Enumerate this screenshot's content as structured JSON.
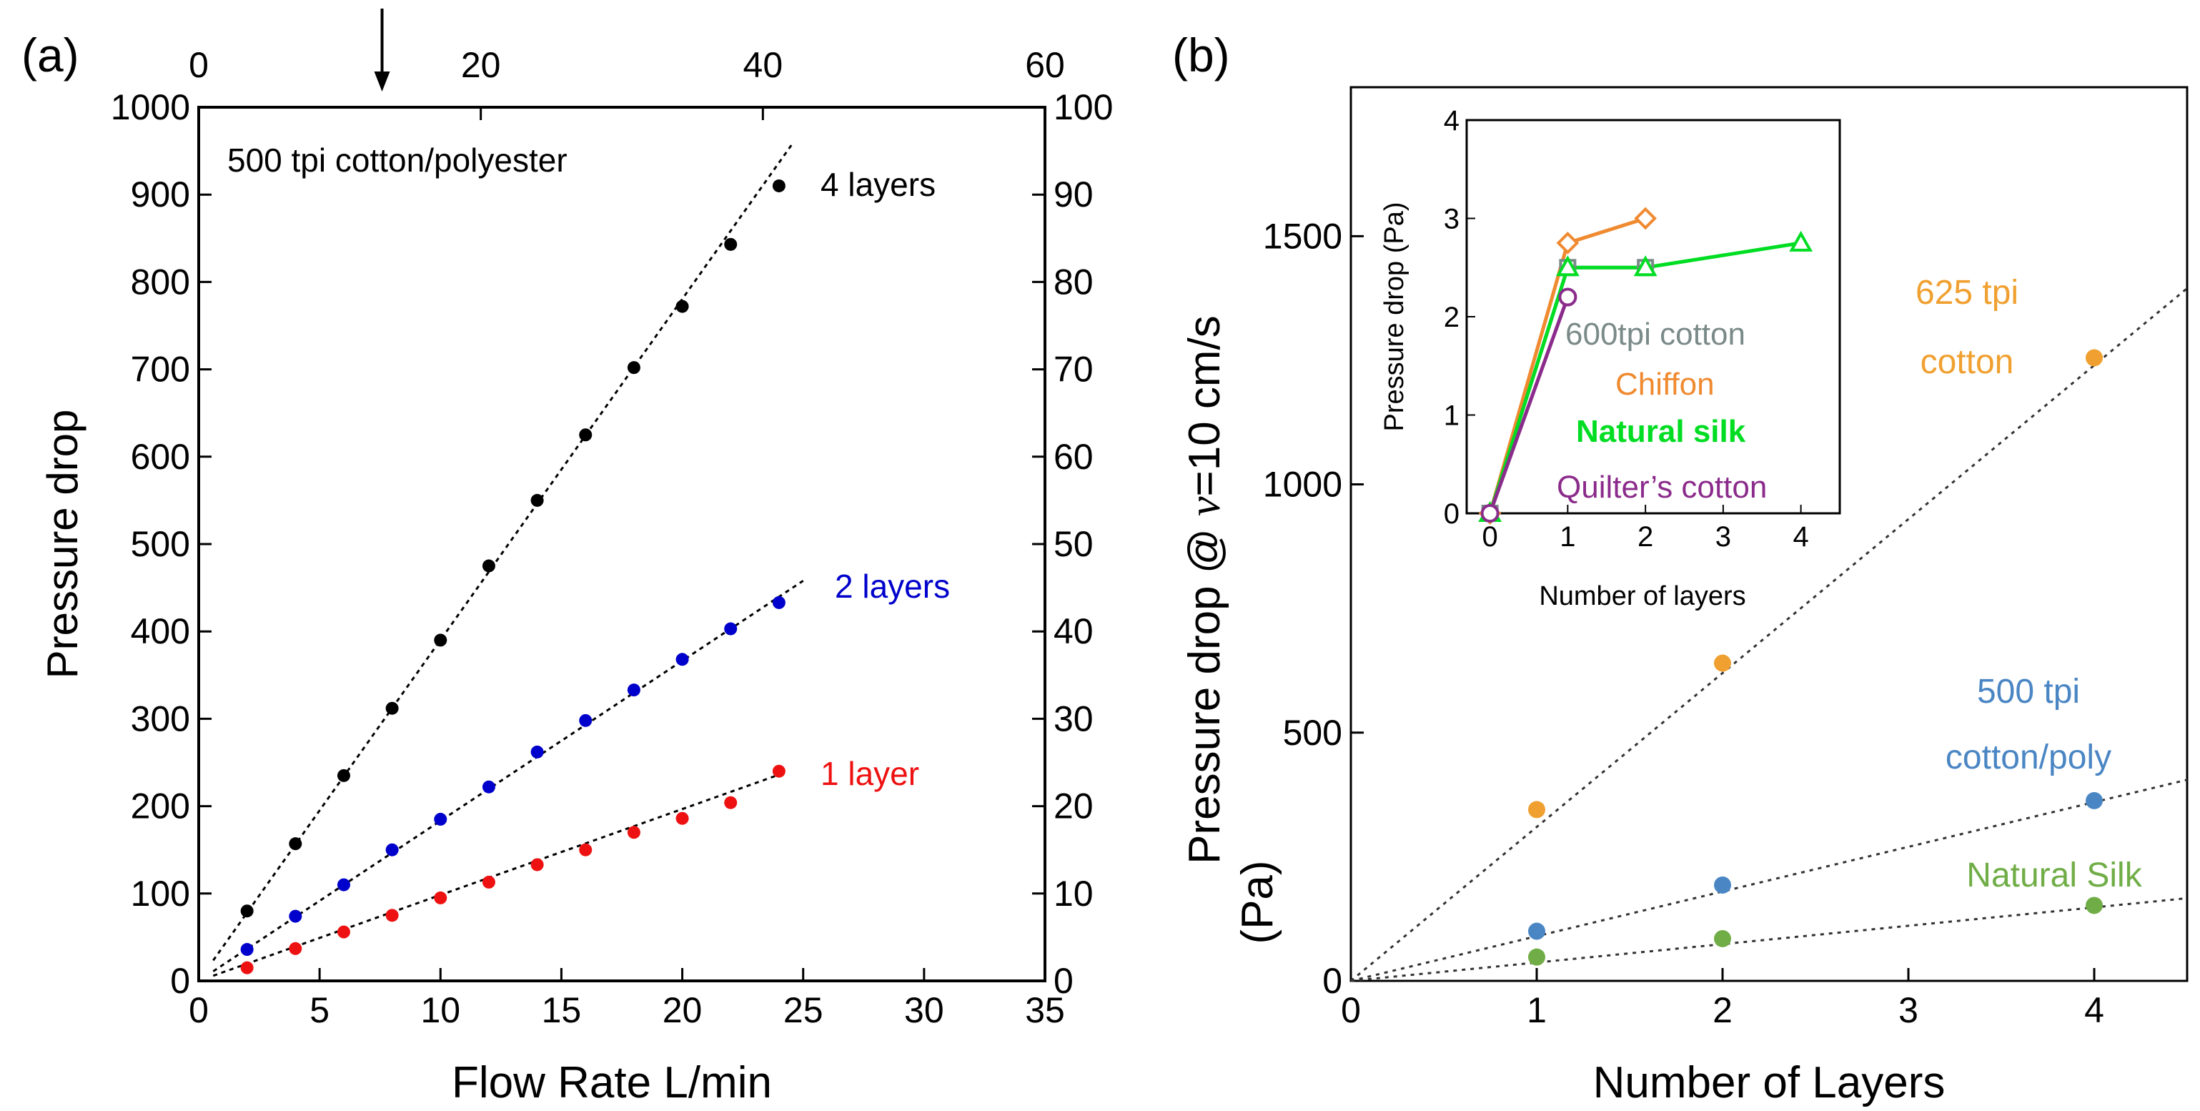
{
  "chart_data": [
    {
      "panel_label": "(a)",
      "type": "scatter",
      "title": "500 tpi cotton/polyester",
      "xlabel": "Flow Rate L/min",
      "ylabel": "Pressure drop",
      "xlim": [
        0,
        35
      ],
      "ylim": [
        0,
        1000
      ],
      "xticks": [
        "0",
        "5",
        "10",
        "15",
        "20",
        "25",
        "30",
        "35"
      ],
      "yticks": [
        "0",
        "100",
        "200",
        "300",
        "400",
        "500",
        "600",
        "700",
        "800",
        "900",
        "1000"
      ],
      "top_axis": {
        "lim": [
          0,
          60
        ],
        "ticks": [
          "0",
          "20",
          "40",
          "60"
        ]
      },
      "right_axis": {
        "lim": [
          0,
          100
        ],
        "ticks": [
          "0",
          "10",
          "20",
          "30",
          "40",
          "50",
          "60",
          "70",
          "80",
          "90",
          "100"
        ]
      },
      "arrow_marker_top_axis": 13,
      "series": [
        {
          "name": "4 layers",
          "color": "#000000",
          "x": [
            2,
            4,
            6,
            8,
            10,
            12,
            14,
            16,
            18,
            20,
            22,
            24
          ],
          "y": [
            80,
            157,
            235,
            312,
            390,
            475,
            550,
            625,
            702,
            772,
            843,
            910
          ],
          "fit_end": [
            24.6,
            960
          ]
        },
        {
          "name": "2 layers",
          "color": "#0000cc",
          "x": [
            2,
            4,
            6,
            8,
            10,
            12,
            14,
            16,
            18,
            20,
            22,
            24
          ],
          "y": [
            36,
            74,
            110,
            150,
            185,
            222,
            262,
            298,
            333,
            368,
            403,
            433
          ],
          "fit_end": [
            25,
            458
          ]
        },
        {
          "name": "1 layer",
          "color": "#ee1111",
          "x": [
            2,
            4,
            6,
            8,
            10,
            12,
            14,
            16,
            18,
            20,
            22,
            24
          ],
          "y": [
            15,
            37,
            56,
            75,
            95,
            113,
            133,
            150,
            170,
            186,
            204,
            240
          ],
          "fit_end": [
            24,
            236
          ]
        }
      ]
    },
    {
      "panel_label": "(b)",
      "type": "scatter",
      "xlabel": "Number of Layers",
      "ylabel_main": "Pressure drop @ ",
      "ylabel_symbol": "v",
      "ylabel_tail": "=10 cm/s",
      "ylabel_units": "(Pa)",
      "xlim": [
        0,
        4.5
      ],
      "ylim": [
        0,
        1800
      ],
      "xticks": [
        "0",
        "1",
        "2",
        "3",
        "4"
      ],
      "yticks": [
        "0",
        "500",
        "1000",
        "1500"
      ],
      "series": [
        {
          "name": "625 tpi cotton",
          "label_line1": "625 tpi",
          "label_line2": "cotton",
          "color": "#f0a030",
          "x": [
            1,
            2,
            4
          ],
          "y": [
            345,
            640,
            1255
          ],
          "fit_slope": 310
        },
        {
          "name": "500 tpi cotton/poly",
          "label_line1": "500 tpi",
          "label_line2": "cotton/poly",
          "color": "#4a86c4",
          "x": [
            1,
            2,
            4
          ],
          "y": [
            100,
            193,
            363
          ],
          "fit_slope": 90
        },
        {
          "name": "Natural Silk",
          "label_line1": "Natural Silk",
          "color": "#70ad47",
          "x": [
            1,
            2,
            4
          ],
          "y": [
            48,
            85,
            152
          ],
          "fit_slope": 37
        }
      ],
      "inset": {
        "type": "line",
        "xlabel": "Number of layers",
        "ylabel": "Pressure drop (Pa)",
        "xlim": [
          -0.3,
          4.5
        ],
        "ylim": [
          0,
          4
        ],
        "xticks": [
          "0",
          "1",
          "2",
          "3",
          "4"
        ],
        "yticks": [
          "0",
          "1",
          "2",
          "3",
          "4"
        ],
        "series": [
          {
            "name": "600tpi cotton",
            "color": "#7a8a88",
            "marker": "square",
            "x": [
              0,
              1,
              2
            ],
            "y": [
              0,
              2.5,
              2.5
            ]
          },
          {
            "name": "Chiffon",
            "color": "#f08a30",
            "marker": "diamond",
            "x": [
              0,
              1,
              2
            ],
            "y": [
              0,
              2.75,
              3.0
            ]
          },
          {
            "name": "Natural silk",
            "color": "#00dd22",
            "marker": "triangle",
            "x": [
              0,
              1,
              2,
              4
            ],
            "y": [
              0,
              2.5,
              2.5,
              2.75
            ]
          },
          {
            "name": "Quilter’s cotton",
            "color": "#8b2b8b",
            "marker": "circle",
            "x": [
              0,
              1
            ],
            "y": [
              0,
              2.2
            ]
          }
        ]
      }
    }
  ]
}
